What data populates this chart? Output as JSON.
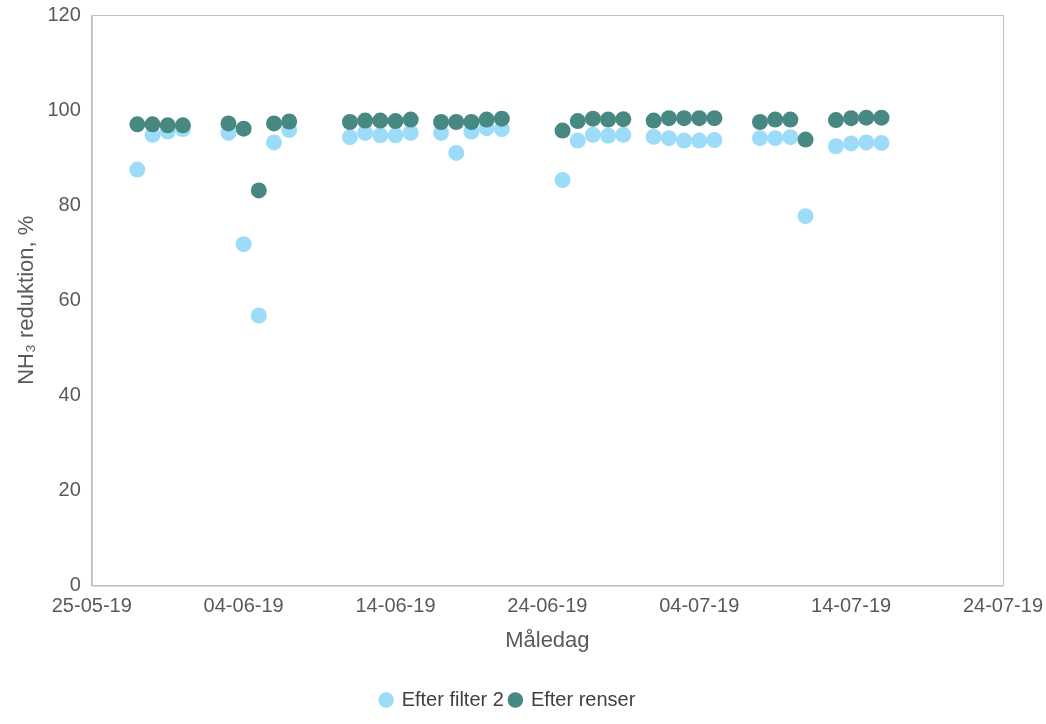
{
  "chart_data": {
    "type": "scatter",
    "xlabel": "Måledag",
    "ylabel": "NH₃ reduktion, %",
    "x": [
      "--05-28",
      "--05-29",
      "--05-30",
      "--05-31",
      "--06-03",
      "--06-04",
      "--06-05",
      "--06-06",
      "--06-07",
      "--06-11",
      "--06-12",
      "--06-13",
      "--06-14",
      "--06-15",
      "--06-17",
      "--06-18",
      "--06-19",
      "--06-20",
      "--06-21",
      "--06-25",
      "--06-26",
      "--06-27",
      "--06-28",
      "--06-29",
      "--07-01",
      "--07-02",
      "--07-03",
      "--07-04",
      "--07-05",
      "--07-08",
      "--07-09",
      "--07-10",
      "--07-11",
      "--07-13",
      "--07-14",
      "--07-15",
      "--07-16"
    ],
    "series": [
      {
        "name": "Efter filter 2",
        "color": "#9ddcf9",
        "values": [
          87.5,
          94.8,
          95.5,
          96,
          95.2,
          71.8,
          56.8,
          93.2,
          95.8,
          94.3,
          95.2,
          94.7,
          94.7,
          95.2,
          95.2,
          91,
          95.5,
          96.2,
          96,
          85.3,
          93.6,
          94.8,
          94.6,
          94.8,
          94.4,
          94.1,
          93.6,
          93.6,
          93.7,
          94.1,
          94.1,
          94.3,
          77.7,
          92.4,
          93,
          93.2,
          93.1
        ]
      },
      {
        "name": "Efter renser",
        "color": "#478982",
        "values": [
          97,
          97,
          96.8,
          96.8,
          97.2,
          96.1,
          83.1,
          97.2,
          97.6,
          97.5,
          97.8,
          97.8,
          97.7,
          98,
          97.5,
          97.5,
          97.5,
          98,
          98.2,
          95.7,
          97.7,
          98.2,
          98,
          98.1,
          97.8,
          98.3,
          98.3,
          98.3,
          98.3,
          97.5,
          98,
          98,
          93.8,
          97.9,
          98.3,
          98.4,
          98.4
        ]
      }
    ],
    "xlim": [
      "--05-25",
      "--07-24"
    ],
    "xticks": [
      {
        "value": "--05-25",
        "label": "25-05-19"
      },
      {
        "value": "--06-04",
        "label": "04-06-19"
      },
      {
        "value": "--06-14",
        "label": "14-06-19"
      },
      {
        "value": "--06-24",
        "label": "24-06-19"
      },
      {
        "value": "--07-04",
        "label": "04-07-19"
      },
      {
        "value": "--07-14",
        "label": "14-07-19"
      },
      {
        "value": "--07-24",
        "label": "24-07-19"
      }
    ],
    "ylim": [
      0,
      120
    ],
    "yticks": [
      0,
      20,
      40,
      60,
      80,
      100,
      120
    ],
    "grid": false,
    "legend": "bottom",
    "marker": "circle"
  }
}
